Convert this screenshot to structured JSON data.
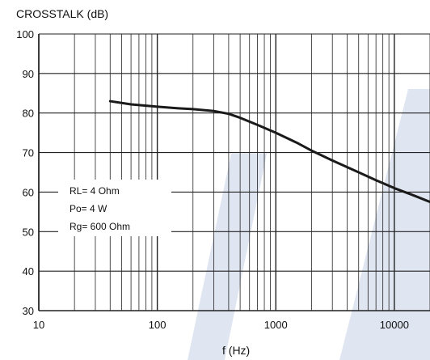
{
  "chart_data": {
    "type": "line",
    "title": "",
    "ylabel": "CROSSTALK (dB)",
    "xlabel": "f (Hz)",
    "xscale": "log",
    "xlim": [
      10,
      20000
    ],
    "ylim": [
      30,
      100
    ],
    "grid": true,
    "x_tick_labels": [
      "10",
      "100",
      "1000",
      "10000"
    ],
    "y_tick_labels": [
      "30",
      "40",
      "50",
      "60",
      "70",
      "80",
      "90",
      "100"
    ],
    "x_ticks": [
      10,
      100,
      1000,
      10000
    ],
    "y_ticks": [
      30,
      40,
      50,
      60,
      70,
      80,
      90,
      100
    ],
    "annotations": [
      "RL= 4 Ohm",
      "Po= 4 W",
      "Rg= 600 Ohm"
    ],
    "annotation_placement": "left-middle",
    "series": [
      {
        "x": [
          40,
          60,
          100,
          150,
          200,
          300,
          400,
          500,
          700,
          1000,
          1500,
          2000,
          3000,
          5000,
          7000,
          10000,
          15000,
          20000
        ],
        "y": [
          83,
          82.2,
          81.6,
          81.2,
          81,
          80.5,
          79.8,
          78.8,
          77,
          75,
          72.5,
          70.5,
          68,
          65,
          63,
          61,
          59,
          57.5
        ]
      }
    ],
    "colors": {
      "line": "#1a1a1a",
      "grid": "#222222",
      "watermark": "#dfe5f1"
    }
  }
}
